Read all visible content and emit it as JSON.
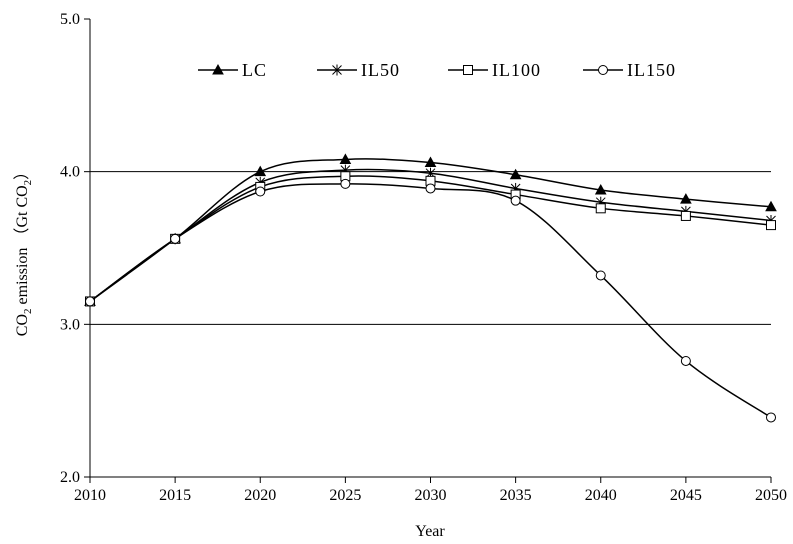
{
  "chart_data": {
    "type": "line",
    "title": "",
    "xlabel": "Year",
    "ylabel": {
      "prefix": "CO",
      "sub1": "2",
      "middle": " emission （Gt CO",
      "sub2": "2",
      "suffix": "）"
    },
    "x": [
      2010,
      2015,
      2020,
      2025,
      2030,
      2035,
      2040,
      2045,
      2050
    ],
    "x_tick_labels": [
      "2010",
      "2015",
      "2020",
      "2025",
      "2030",
      "2035",
      "2040",
      "2045",
      "2050"
    ],
    "y_tick_labels": [
      "2.0",
      "3.0",
      "4.0",
      "5.0"
    ],
    "xlim": [
      2010,
      2050
    ],
    "ylim": [
      2.0,
      5.0
    ],
    "gridlines_y": [
      3.0,
      4.0
    ],
    "legend_position": "top",
    "series": [
      {
        "name": "LC",
        "marker": "triangle",
        "values": [
          3.15,
          3.56,
          4.0,
          4.08,
          4.06,
          3.98,
          3.88,
          3.82,
          3.77
        ]
      },
      {
        "name": "IL50",
        "marker": "asterisk",
        "values": [
          3.15,
          3.56,
          3.93,
          4.01,
          3.99,
          3.89,
          3.8,
          3.74,
          3.68
        ]
      },
      {
        "name": "IL100",
        "marker": "square",
        "values": [
          3.15,
          3.56,
          3.9,
          3.97,
          3.94,
          3.85,
          3.76,
          3.71,
          3.65
        ]
      },
      {
        "name": "IL150",
        "marker": "circle",
        "values": [
          3.15,
          3.56,
          3.87,
          3.92,
          3.89,
          3.81,
          3.32,
          2.76,
          2.39
        ]
      }
    ],
    "line_color": "#000000",
    "marker_fill": {
      "triangle": "#000000",
      "square": "#ffffff",
      "circle": "#ffffff",
      "asterisk": "none"
    }
  }
}
